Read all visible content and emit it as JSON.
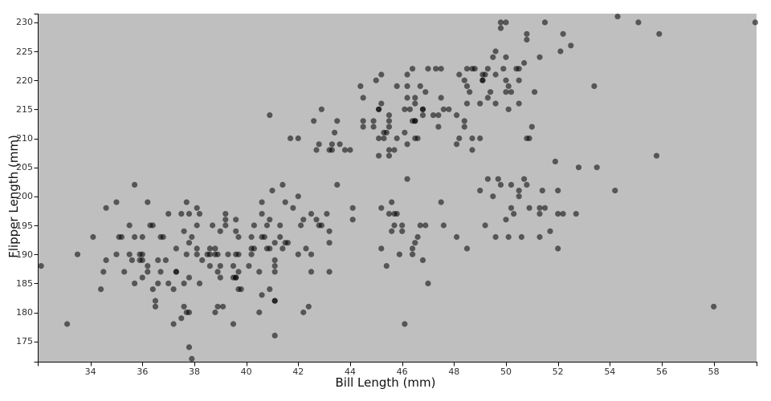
{
  "chart_data": {
    "type": "scatter",
    "title": "",
    "xlabel": "Bill Length (mm)",
    "ylabel": "Flipper Length (mm)",
    "xlim": [
      32.0,
      59.65
    ],
    "ylim": [
      171.5,
      231.5
    ],
    "x_ticks": [
      34,
      36,
      38,
      40,
      42,
      44,
      46,
      48,
      50,
      52,
      54,
      56,
      58
    ],
    "y_ticks": [
      175,
      180,
      185,
      190,
      195,
      200,
      205,
      210,
      215,
      220,
      225,
      230
    ],
    "grid": "off",
    "legend": "none",
    "point_opacity": 0.55,
    "colors": {
      "panel_bg": "#bfbfbf",
      "point": "#000000",
      "axis_line": "#0a0a0a",
      "tick_label": "#303030",
      "axis_title": "#111111"
    },
    "points": [
      [
        39.1,
        181
      ],
      [
        39.5,
        186
      ],
      [
        40.3,
        195
      ],
      [
        36.7,
        193
      ],
      [
        39.3,
        190
      ],
      [
        38.9,
        181
      ],
      [
        39.2,
        195
      ],
      [
        34.1,
        193
      ],
      [
        42.0,
        190
      ],
      [
        37.8,
        186
      ],
      [
        37.8,
        180
      ],
      [
        41.1,
        182
      ],
      [
        38.6,
        191
      ],
      [
        34.6,
        198
      ],
      [
        36.6,
        185
      ],
      [
        38.7,
        195
      ],
      [
        42.5,
        197
      ],
      [
        34.4,
        184
      ],
      [
        46.0,
        194
      ],
      [
        37.8,
        174
      ],
      [
        37.7,
        180
      ],
      [
        35.9,
        189
      ],
      [
        38.2,
        185
      ],
      [
        38.8,
        180
      ],
      [
        35.3,
        187
      ],
      [
        40.6,
        183
      ],
      [
        40.5,
        187
      ],
      [
        37.9,
        172
      ],
      [
        40.5,
        180
      ],
      [
        39.5,
        178
      ],
      [
        37.2,
        178
      ],
      [
        39.5,
        188
      ],
      [
        40.9,
        184
      ],
      [
        36.4,
        195
      ],
      [
        39.2,
        196
      ],
      [
        38.8,
        190
      ],
      [
        42.2,
        180
      ],
      [
        37.6,
        181
      ],
      [
        39.8,
        184
      ],
      [
        36.5,
        182
      ],
      [
        40.8,
        195
      ],
      [
        36.0,
        186
      ],
      [
        44.1,
        196
      ],
      [
        37.0,
        185
      ],
      [
        39.6,
        190
      ],
      [
        41.1,
        182
      ],
      [
        37.5,
        179
      ],
      [
        36.0,
        190
      ],
      [
        42.3,
        191
      ],
      [
        39.6,
        186
      ],
      [
        40.1,
        188
      ],
      [
        35.0,
        190
      ],
      [
        42.0,
        200
      ],
      [
        34.5,
        187
      ],
      [
        41.4,
        191
      ],
      [
        39.0,
        186
      ],
      [
        40.6,
        193
      ],
      [
        36.5,
        181
      ],
      [
        37.6,
        194
      ],
      [
        35.7,
        185
      ],
      [
        41.3,
        195
      ],
      [
        37.6,
        185
      ],
      [
        41.1,
        192
      ],
      [
        36.4,
        184
      ],
      [
        41.6,
        192
      ],
      [
        35.5,
        195
      ],
      [
        41.1,
        188
      ],
      [
        35.9,
        190
      ],
      [
        41.8,
        198
      ],
      [
        33.5,
        190
      ],
      [
        39.7,
        190
      ],
      [
        39.6,
        196
      ],
      [
        45.8,
        197
      ],
      [
        35.5,
        190
      ],
      [
        42.8,
        195
      ],
      [
        40.9,
        191
      ],
      [
        37.2,
        184
      ],
      [
        36.2,
        187
      ],
      [
        42.1,
        195
      ],
      [
        34.6,
        189
      ],
      [
        42.9,
        195
      ],
      [
        36.7,
        187
      ],
      [
        35.1,
        193
      ],
      [
        37.3,
        187
      ],
      [
        41.3,
        193
      ],
      [
        36.3,
        195
      ],
      [
        36.9,
        189
      ],
      [
        38.3,
        189
      ],
      [
        38.9,
        187
      ],
      [
        35.7,
        202
      ],
      [
        41.1,
        176
      ],
      [
        38.9,
        190
      ],
      [
        39.6,
        186
      ],
      [
        36.2,
        199
      ],
      [
        40.8,
        191
      ],
      [
        38.1,
        195
      ],
      [
        40.3,
        191
      ],
      [
        33.1,
        178
      ],
      [
        43.2,
        192
      ],
      [
        35.0,
        199
      ],
      [
        41.0,
        201
      ],
      [
        37.7,
        199
      ],
      [
        37.8,
        197
      ],
      [
        37.9,
        193
      ],
      [
        39.7,
        187
      ],
      [
        38.6,
        188
      ],
      [
        38.2,
        197
      ],
      [
        38.1,
        198
      ],
      [
        43.2,
        194
      ],
      [
        38.1,
        191
      ],
      [
        45.6,
        199
      ],
      [
        39.7,
        184
      ],
      [
        42.2,
        196
      ],
      [
        39.6,
        194
      ],
      [
        42.7,
        196
      ],
      [
        38.6,
        190
      ],
      [
        37.3,
        187
      ],
      [
        35.7,
        193
      ],
      [
        41.1,
        187
      ],
      [
        36.2,
        188
      ],
      [
        37.7,
        190
      ],
      [
        40.2,
        190
      ],
      [
        41.4,
        202
      ],
      [
        35.2,
        193
      ],
      [
        40.6,
        197
      ],
      [
        38.8,
        191
      ],
      [
        41.5,
        199
      ],
      [
        39.0,
        194
      ],
      [
        44.1,
        198
      ],
      [
        38.5,
        190
      ],
      [
        43.1,
        197
      ],
      [
        36.8,
        193
      ],
      [
        37.5,
        197
      ],
      [
        38.1,
        190
      ],
      [
        41.1,
        189
      ],
      [
        35.6,
        189
      ],
      [
        40.2,
        191
      ],
      [
        37.0,
        197
      ],
      [
        39.7,
        193
      ],
      [
        40.2,
        193
      ],
      [
        40.6,
        199
      ],
      [
        32.1,
        188
      ],
      [
        40.7,
        193
      ],
      [
        37.3,
        191
      ],
      [
        39.0,
        188
      ],
      [
        39.2,
        197
      ],
      [
        36.6,
        189
      ],
      [
        36.0,
        189
      ],
      [
        37.8,
        192
      ],
      [
        36.0,
        193
      ],
      [
        41.5,
        192
      ],
      [
        46.5,
        192
      ],
      [
        50.0,
        196
      ],
      [
        51.3,
        193
      ],
      [
        45.4,
        188
      ],
      [
        52.7,
        197
      ],
      [
        45.2,
        198
      ],
      [
        46.1,
        178
      ],
      [
        51.3,
        197
      ],
      [
        46.0,
        195
      ],
      [
        51.3,
        198
      ],
      [
        46.6,
        193
      ],
      [
        51.7,
        194
      ],
      [
        47.0,
        185
      ],
      [
        52.0,
        201
      ],
      [
        45.9,
        190
      ],
      [
        50.5,
        201
      ],
      [
        50.3,
        197
      ],
      [
        58.0,
        181
      ],
      [
        46.4,
        190
      ],
      [
        49.2,
        195
      ],
      [
        42.4,
        181
      ],
      [
        48.5,
        191
      ],
      [
        43.2,
        187
      ],
      [
        50.6,
        193
      ],
      [
        46.7,
        195
      ],
      [
        52.0,
        197
      ],
      [
        50.5,
        200
      ],
      [
        49.5,
        200
      ],
      [
        46.4,
        191
      ],
      [
        52.8,
        205
      ],
      [
        40.9,
        196
      ],
      [
        54.2,
        201
      ],
      [
        42.5,
        190
      ],
      [
        51.0,
        212
      ],
      [
        49.7,
        203
      ],
      [
        47.5,
        199
      ],
      [
        47.6,
        195
      ],
      [
        52.0,
        191
      ],
      [
        46.9,
        195
      ],
      [
        53.5,
        205
      ],
      [
        49.0,
        201
      ],
      [
        46.2,
        203
      ],
      [
        50.9,
        210
      ],
      [
        45.5,
        197
      ],
      [
        50.9,
        198
      ],
      [
        50.8,
        202
      ],
      [
        50.1,
        193
      ],
      [
        49.0,
        210
      ],
      [
        51.5,
        198
      ],
      [
        49.8,
        202
      ],
      [
        48.1,
        193
      ],
      [
        51.4,
        201
      ],
      [
        45.7,
        197
      ],
      [
        50.7,
        203
      ],
      [
        42.5,
        187
      ],
      [
        52.2,
        197
      ],
      [
        45.2,
        191
      ],
      [
        49.3,
        203
      ],
      [
        50.2,
        202
      ],
      [
        45.6,
        194
      ],
      [
        51.9,
        206
      ],
      [
        46.8,
        189
      ],
      [
        45.7,
        195
      ],
      [
        55.8,
        207
      ],
      [
        43.5,
        202
      ],
      [
        49.6,
        193
      ],
      [
        50.8,
        210
      ],
      [
        50.2,
        198
      ],
      [
        46.1,
        211
      ],
      [
        50.0,
        230
      ],
      [
        48.7,
        210
      ],
      [
        50.0,
        218
      ],
      [
        47.6,
        215
      ],
      [
        46.5,
        210
      ],
      [
        45.4,
        211
      ],
      [
        46.7,
        219
      ],
      [
        43.3,
        209
      ],
      [
        46.8,
        215
      ],
      [
        40.9,
        214
      ],
      [
        49.0,
        216
      ],
      [
        45.5,
        214
      ],
      [
        48.4,
        213
      ],
      [
        45.8,
        210
      ],
      [
        49.3,
        217
      ],
      [
        42.0,
        210
      ],
      [
        49.2,
        221
      ],
      [
        46.2,
        209
      ],
      [
        48.7,
        222
      ],
      [
        50.2,
        218
      ],
      [
        45.1,
        215
      ],
      [
        46.5,
        213
      ],
      [
        46.3,
        215
      ],
      [
        42.9,
        215
      ],
      [
        46.1,
        215
      ],
      [
        44.5,
        213
      ],
      [
        47.8,
        215
      ],
      [
        48.2,
        210
      ],
      [
        50.0,
        220
      ],
      [
        47.3,
        222
      ],
      [
        42.8,
        209
      ],
      [
        45.1,
        207
      ],
      [
        59.6,
        230
      ],
      [
        49.1,
        220
      ],
      [
        48.4,
        220
      ],
      [
        42.6,
        213
      ],
      [
        44.4,
        219
      ],
      [
        44.0,
        208
      ],
      [
        48.7,
        208
      ],
      [
        42.7,
        208
      ],
      [
        49.6,
        221
      ],
      [
        45.3,
        210
      ],
      [
        49.6,
        216
      ],
      [
        50.5,
        222
      ],
      [
        43.6,
        209
      ],
      [
        45.5,
        207
      ],
      [
        50.5,
        220
      ],
      [
        44.9,
        212
      ],
      [
        45.2,
        221
      ],
      [
        46.6,
        210
      ],
      [
        48.5,
        219
      ],
      [
        45.1,
        215
      ],
      [
        50.1,
        215
      ],
      [
        46.5,
        213
      ],
      [
        45.0,
        220
      ],
      [
        43.8,
        208
      ],
      [
        45.5,
        208
      ],
      [
        43.2,
        208
      ],
      [
        50.4,
        222
      ],
      [
        45.3,
        211
      ],
      [
        46.2,
        219
      ],
      [
        45.7,
        208
      ],
      [
        54.3,
        231
      ],
      [
        45.8,
        219
      ],
      [
        49.8,
        230
      ],
      [
        46.5,
        217
      ],
      [
        55.1,
        230
      ],
      [
        44.5,
        217
      ],
      [
        48.8,
        222
      ],
      [
        47.2,
        214
      ],
      [
        46.8,
        215
      ],
      [
        41.7,
        210
      ],
      [
        53.4,
        219
      ],
      [
        43.3,
        208
      ],
      [
        48.1,
        209
      ],
      [
        50.5,
        216
      ],
      [
        49.8,
        229
      ],
      [
        43.5,
        213
      ],
      [
        51.5,
        230
      ],
      [
        46.2,
        217
      ],
      [
        55.9,
        228
      ],
      [
        49.1,
        220
      ],
      [
        47.0,
        222
      ],
      [
        52.2,
        228
      ],
      [
        45.5,
        213
      ],
      [
        49.5,
        224
      ],
      [
        44.5,
        212
      ],
      [
        50.8,
        228
      ],
      [
        49.4,
        218
      ],
      [
        46.9,
        218
      ],
      [
        48.4,
        212
      ],
      [
        51.1,
        218
      ],
      [
        48.5,
        222
      ],
      [
        50.1,
        219
      ],
      [
        48.5,
        216
      ],
      [
        47.5,
        217
      ],
      [
        44.9,
        213
      ],
      [
        46.4,
        222
      ],
      [
        47.4,
        212
      ],
      [
        46.8,
        214
      ],
      [
        45.2,
        216
      ],
      [
        49.9,
        222
      ],
      [
        50.8,
        227
      ],
      [
        49.3,
        222
      ],
      [
        46.5,
        216
      ],
      [
        45.1,
        210
      ],
      [
        52.1,
        225
      ],
      [
        47.5,
        222
      ],
      [
        49.1,
        221
      ],
      [
        52.5,
        226
      ],
      [
        47.4,
        214
      ],
      [
        50.7,
        223
      ],
      [
        48.2,
        221
      ],
      [
        45.5,
        212
      ],
      [
        49.6,
        225
      ],
      [
        46.4,
        213
      ],
      [
        48.6,
        218
      ],
      [
        51.3,
        224
      ],
      [
        43.4,
        211
      ],
      [
        48.1,
        214
      ],
      [
        50.0,
        224
      ],
      [
        46.2,
        221
      ]
    ]
  }
}
